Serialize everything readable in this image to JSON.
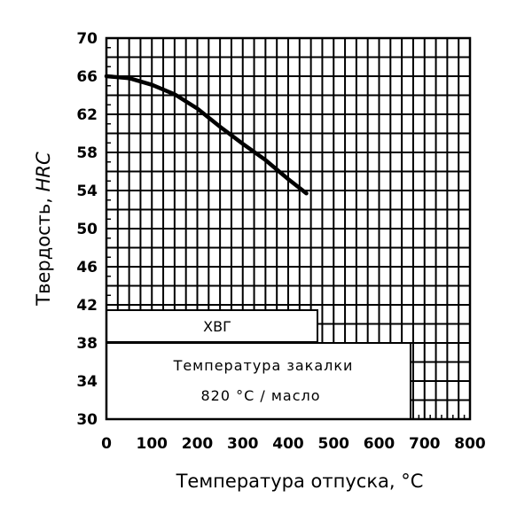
{
  "chart_data": {
    "type": "line",
    "xlabel": "Температура отпуска, °С",
    "ylabel_prefix": "Твердость, ",
    "ylabel_unit": "HRC",
    "xlim": [
      0,
      800
    ],
    "ylim": [
      30,
      70
    ],
    "x_ticks": [
      "0",
      "100",
      "200",
      "300",
      "400",
      "500",
      "600",
      "700",
      "800"
    ],
    "y_ticks": [
      "30",
      "34",
      "38",
      "42",
      "46",
      "50",
      "54",
      "58",
      "62",
      "66",
      "70"
    ],
    "grid": true,
    "series": [
      {
        "x": [
          0,
          50,
          100,
          150,
          200,
          250,
          300,
          350,
          400,
          440
        ],
        "y": [
          66,
          65.8,
          65.1,
          64.1,
          62.6,
          60.7,
          58.9,
          57.2,
          55.2,
          53.7
        ]
      }
    ],
    "annotations": {
      "grade": "ХВГ",
      "quench_line1": "Температура закалки",
      "quench_line2": "820 °С / масло"
    }
  }
}
